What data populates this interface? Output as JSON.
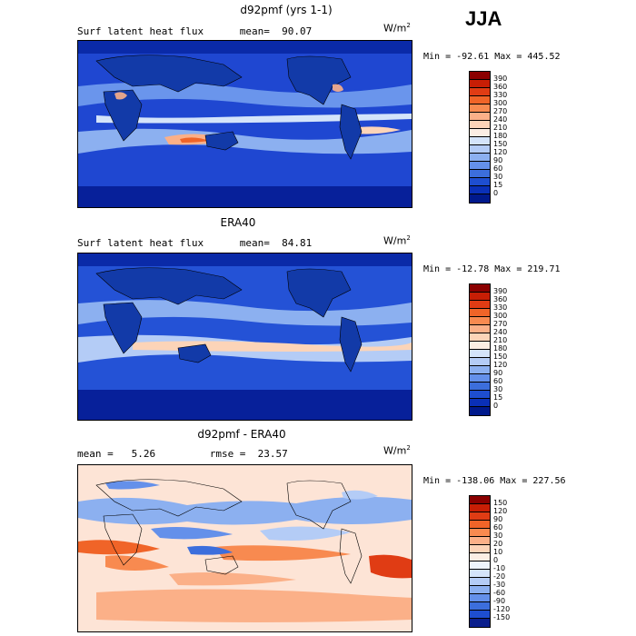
{
  "season_label": "JJA",
  "panels": [
    {
      "title": "d92pmf (yrs 1-1)",
      "subtitle": "Surf latent heat flux      mean=  90.07",
      "units": "W/m",
      "units_exp": "2",
      "minmax": "Min = -92.61 Max = 445.52",
      "colorbar_labels": [
        "390",
        "360",
        "330",
        "300",
        "270",
        "240",
        "210",
        "180",
        "150",
        "120",
        "90",
        "60",
        "30",
        "15",
        "0"
      ],
      "colorbar_colors": [
        "#8b0000",
        "#c81e05",
        "#e03c14",
        "#f06428",
        "#f88a50",
        "#fbb088",
        "#fcd4b8",
        "#fbeee4",
        "#d4e4fa",
        "#b4ccf6",
        "#8cb0f0",
        "#6490ea",
        "#3c6edc",
        "#1e4ed0",
        "#0a30b8",
        "#00198c"
      ],
      "map_base": "#1f47d1"
    },
    {
      "title": "ERA40",
      "subtitle": "Surf latent heat flux      mean=  84.81",
      "units": "W/m",
      "units_exp": "2",
      "minmax": "Min = -12.78 Max = 219.71",
      "colorbar_labels": [
        "390",
        "360",
        "330",
        "300",
        "270",
        "240",
        "210",
        "180",
        "150",
        "120",
        "90",
        "60",
        "30",
        "15",
        "0"
      ],
      "colorbar_colors": [
        "#8b0000",
        "#c81e05",
        "#e03c14",
        "#f06428",
        "#f88a50",
        "#fbb088",
        "#fcd4b8",
        "#fbeee4",
        "#d4e4fa",
        "#b4ccf6",
        "#8cb0f0",
        "#6490ea",
        "#3c6edc",
        "#1e4ed0",
        "#0a30b8",
        "#00198c"
      ],
      "map_base": "#2452d6"
    },
    {
      "title": "d92pmf - ERA40",
      "subtitle": "mean =   5.26         rmse =  23.57",
      "units": "W/m",
      "units_exp": "2",
      "minmax": "Min = -138.06 Max = 227.56",
      "colorbar_labels": [
        "150",
        "120",
        "90",
        "60",
        "30",
        "20",
        "10",
        "0",
        "-10",
        "-20",
        "-30",
        "-60",
        "-90",
        "-120",
        "-150"
      ],
      "colorbar_colors": [
        "#8b0000",
        "#c81e05",
        "#e03c14",
        "#f06428",
        "#f88a50",
        "#fbb088",
        "#fcd4b8",
        "#fbeee4",
        "#eef4fc",
        "#d4e4fa",
        "#b4ccf6",
        "#8cb0f0",
        "#6490ea",
        "#3c6edc",
        "#1e4ed0",
        "#0a1e8c"
      ],
      "map_base": "#fde4d6"
    }
  ]
}
